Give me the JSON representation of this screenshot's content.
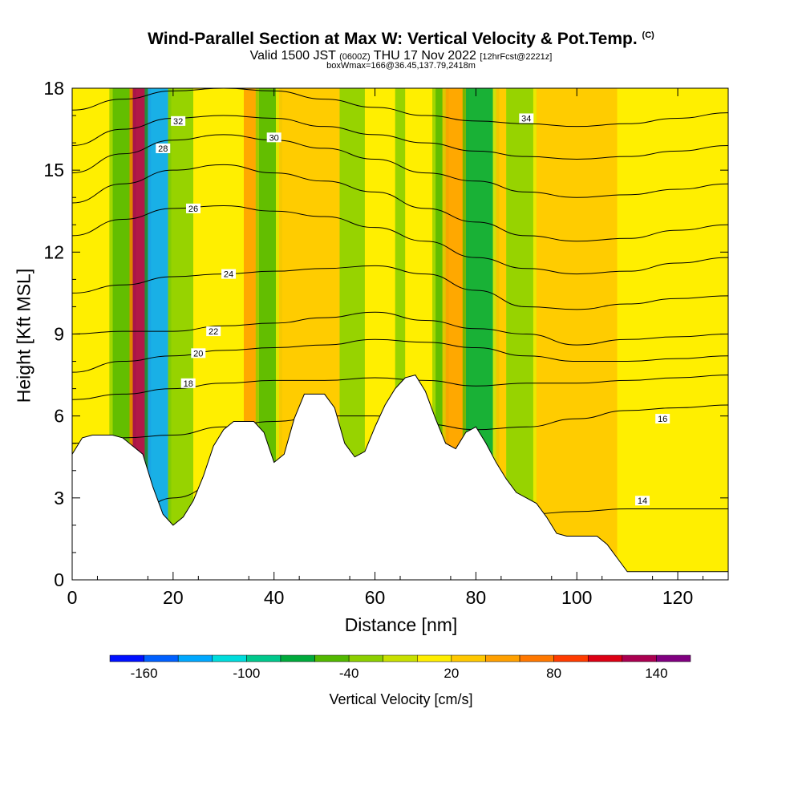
{
  "header": {
    "title": "Wind-Parallel Section at Max W: Vertical Velocity & Pot.Temp.",
    "copyright": "(C)",
    "valid_prefix": "Valid 1500 JST",
    "valid_utc": "(0600Z)",
    "valid_day": "THU 17 Nov 2022",
    "forecast": "[12hrFcst@2221z]",
    "boxinfo": "boxWmax=166@36.45,137.79,2418m"
  },
  "chart_data": {
    "type": "heatmap",
    "xlabel": "Distance [nm]",
    "ylabel": "Height [Kft MSL]",
    "xlim": [
      0,
      130
    ],
    "ylim": [
      0,
      18
    ],
    "xticks": [
      "0",
      "20",
      "40",
      "60",
      "80",
      "100",
      "120"
    ],
    "yticks": [
      "0",
      "3",
      "6",
      "9",
      "12",
      "15",
      "18"
    ],
    "colorbar": {
      "label": "Vertical Velocity [cm/s]",
      "tick_labels": [
        "-160",
        "-100",
        "-40",
        "20",
        "80",
        "140"
      ],
      "colors": [
        "#0010ff",
        "#0060ff",
        "#00a8ff",
        "#00dcdc",
        "#00c88c",
        "#00aa3c",
        "#52b800",
        "#8ccf00",
        "#c8e000",
        "#ffee00",
        "#ffc800",
        "#ffa000",
        "#ff7800",
        "#ff3c00",
        "#dc0014",
        "#aa0050",
        "#800080"
      ]
    },
    "terrain": [
      [
        0,
        4.6
      ],
      [
        2,
        5.2
      ],
      [
        4,
        5.3
      ],
      [
        8,
        5.3
      ],
      [
        10,
        5.2
      ],
      [
        12,
        4.9
      ],
      [
        14,
        4.6
      ],
      [
        16,
        3.4
      ],
      [
        18,
        2.4
      ],
      [
        20,
        2.0
      ],
      [
        22,
        2.3
      ],
      [
        24,
        2.9
      ],
      [
        26,
        3.8
      ],
      [
        28,
        4.9
      ],
      [
        30,
        5.5
      ],
      [
        32,
        5.8
      ],
      [
        36,
        5.8
      ],
      [
        38,
        5.4
      ],
      [
        40,
        4.3
      ],
      [
        42,
        4.6
      ],
      [
        44,
        5.9
      ],
      [
        46,
        6.8
      ],
      [
        50,
        6.8
      ],
      [
        52,
        6.3
      ],
      [
        54,
        5.0
      ],
      [
        56,
        4.5
      ],
      [
        58,
        4.7
      ],
      [
        60,
        5.6
      ],
      [
        62,
        6.4
      ],
      [
        64,
        7.0
      ],
      [
        66,
        7.4
      ],
      [
        68,
        7.5
      ],
      [
        70,
        6.9
      ],
      [
        72,
        5.9
      ],
      [
        74,
        5.0
      ],
      [
        76,
        4.8
      ],
      [
        78,
        5.4
      ],
      [
        80,
        5.6
      ],
      [
        82,
        5.0
      ],
      [
        84,
        4.3
      ],
      [
        86,
        3.7
      ],
      [
        88,
        3.2
      ],
      [
        90,
        3.0
      ],
      [
        92,
        2.8
      ],
      [
        94,
        2.3
      ],
      [
        96,
        1.7
      ],
      [
        98,
        1.6
      ],
      [
        100,
        1.6
      ],
      [
        104,
        1.6
      ],
      [
        106,
        1.3
      ],
      [
        108,
        0.8
      ],
      [
        110,
        0.3
      ],
      [
        114,
        0.3
      ],
      [
        130,
        0.3
      ]
    ],
    "wfield_bands": [
      {
        "x0": 0,
        "x1": 8,
        "w": 20
      },
      {
        "x0": 8,
        "x1": 12,
        "w": -40
      },
      {
        "x0": 12,
        "x1": 15,
        "w": 140
      },
      {
        "x0": 15,
        "x1": 19,
        "w": -130
      },
      {
        "x0": 19,
        "x1": 24,
        "w": -20
      },
      {
        "x0": 24,
        "x1": 34,
        "w": 15
      },
      {
        "x0": 34,
        "x1": 37,
        "w": 50
      },
      {
        "x0": 37,
        "x1": 41,
        "w": -45
      },
      {
        "x0": 41,
        "x1": 48,
        "w": 40
      },
      {
        "x0": 48,
        "x1": 53,
        "w": 30
      },
      {
        "x0": 53,
        "x1": 58,
        "w": -25
      },
      {
        "x0": 58,
        "x1": 64,
        "w": 20
      },
      {
        "x0": 64,
        "x1": 66,
        "w": -30
      },
      {
        "x0": 66,
        "x1": 72,
        "w": 25
      },
      {
        "x0": 72,
        "x1": 74,
        "w": -40
      },
      {
        "x0": 74,
        "x1": 78,
        "w": 60
      },
      {
        "x0": 78,
        "x1": 84,
        "w": -65
      },
      {
        "x0": 84,
        "x1": 86,
        "w": 40
      },
      {
        "x0": 86,
        "x1": 92,
        "w": -20
      },
      {
        "x0": 92,
        "x1": 108,
        "w": 40
      },
      {
        "x0": 108,
        "x1": 130,
        "w": 25
      }
    ],
    "theta_contours": [
      {
        "level": "14",
        "label_at": [
          113,
          2.9
        ],
        "y": [
          1.4,
          2.0,
          3.0,
          3.6,
          3.7,
          3.8,
          3.6,
          2.9,
          2.4,
          2.4,
          2.5,
          2.6,
          2.6,
          2.6
        ]
      },
      {
        "level": "16",
        "label_at": [
          117,
          5.9
        ],
        "y": [
          5.0,
          5.2,
          5.3,
          5.6,
          5.8,
          6.0,
          6.0,
          5.7,
          5.5,
          5.6,
          5.9,
          6.2,
          6.3,
          6.4
        ]
      },
      {
        "level": "18",
        "label_at": [
          23,
          7.2
        ],
        "y": [
          6.6,
          6.8,
          7.0,
          7.2,
          7.3,
          7.3,
          7.4,
          7.3,
          7.1,
          7.2,
          7.2,
          7.3,
          7.4,
          7.5
        ]
      },
      {
        "level": "20",
        "label_at": [
          25,
          8.3
        ],
        "y": [
          7.6,
          8.0,
          8.2,
          8.4,
          8.5,
          8.6,
          8.8,
          8.7,
          8.5,
          8.2,
          8.0,
          8.0,
          8.1,
          8.2
        ]
      },
      {
        "level": "22",
        "label_at": [
          28,
          9.1
        ],
        "y": [
          9.0,
          9.1,
          9.1,
          9.3,
          9.4,
          9.6,
          9.8,
          9.5,
          9.2,
          9.0,
          8.6,
          8.8,
          8.9,
          9.0
        ]
      },
      {
        "level": "24",
        "label_at": [
          31,
          11.2
        ],
        "y": [
          10.5,
          10.8,
          11.1,
          11.2,
          11.3,
          11.4,
          11.5,
          11.2,
          10.6,
          10.0,
          9.9,
          10.1,
          10.3,
          10.4
        ]
      },
      {
        "level": "26",
        "label_at": [
          24,
          13.6
        ],
        "y": [
          12.6,
          13.2,
          13.6,
          13.7,
          13.5,
          13.3,
          12.9,
          12.4,
          11.8,
          11.4,
          11.2,
          11.3,
          11.6,
          11.8
        ]
      },
      {
        "level": "28",
        "label_at": [
          18,
          15.8
        ],
        "y": [
          13.8,
          14.5,
          15.0,
          15.2,
          14.9,
          14.6,
          14.2,
          13.6,
          13.1,
          12.6,
          12.4,
          12.5,
          12.8,
          13.0
        ]
      },
      {
        "level": "30",
        "label_at": [
          40,
          16.2
        ],
        "y": [
          14.9,
          15.6,
          16.1,
          16.3,
          16.1,
          15.8,
          15.4,
          14.9,
          14.6,
          14.2,
          14.0,
          14.1,
          14.3,
          14.5
        ]
      },
      {
        "level": "32",
        "label_at": [
          21,
          16.8
        ],
        "y": [
          15.9,
          16.5,
          16.9,
          17.0,
          16.9,
          16.6,
          16.3,
          16.0,
          15.7,
          15.5,
          15.4,
          15.5,
          15.7,
          15.9
        ]
      },
      {
        "level": "34",
        "label_at": [
          90,
          16.9
        ],
        "y": [
          17.2,
          17.6,
          17.9,
          18.0,
          17.9,
          17.6,
          17.3,
          17.0,
          16.8,
          16.7,
          16.6,
          16.7,
          16.9,
          17.1
        ]
      }
    ],
    "contour_x": [
      0,
      10,
      20,
      30,
      40,
      50,
      60,
      70,
      80,
      90,
      100,
      110,
      120,
      130
    ]
  }
}
